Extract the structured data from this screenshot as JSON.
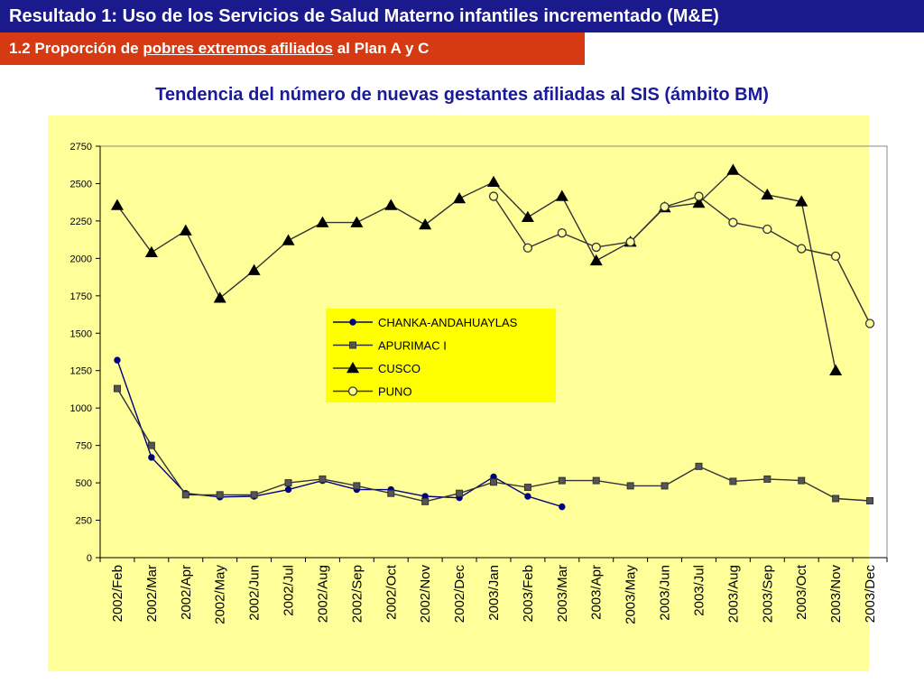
{
  "header": {
    "title": "Resultado 1: Uso de los Servicios de Salud Materno infantiles incrementado (M&E)",
    "subtitle_prefix": "1.2 Proporción de ",
    "subtitle_underlined": "pobres extremos afiliados",
    "subtitle_suffix": " al Plan A y C"
  },
  "colors": {
    "title_bar": "#1a1a8c",
    "subtitle_bar": "#d63a12",
    "chart_title": "#1a1a9c",
    "plot_bg": "#ffff99",
    "legend_bg": "#ffff00",
    "chanka_line": "#000080",
    "other_lines": "#333333"
  },
  "chart_data": {
    "type": "line",
    "title": "Tendencia del número de nuevas gestantes afiliadas al SIS (ámbito BM)",
    "categories": [
      "2002/Feb",
      "2002/Mar",
      "2002/Apr",
      "2002/May",
      "2002/Jun",
      "2002/Jul",
      "2002/Aug",
      "2002/Sep",
      "2002/Oct",
      "2002/Nov",
      "2002/Dec",
      "2003/Jan",
      "2003/Feb",
      "2003/Mar",
      "2003/Apr",
      "2003/May",
      "2003/Jun",
      "2003/Jul",
      "2003/Aug",
      "2003/Sep",
      "2003/Oct",
      "2003/Nov",
      "2003/Dec"
    ],
    "ylim": [
      0,
      2750
    ],
    "yticks": [
      0,
      250,
      500,
      750,
      1000,
      1250,
      1500,
      1750,
      2000,
      2250,
      2500,
      2750
    ],
    "ytick_labels": [
      "0",
      "250",
      "500",
      "750",
      "1000",
      "1250",
      "1500",
      "1750",
      "2000",
      "2250",
      "2500",
      "2750"
    ],
    "grid": false,
    "legend_position": "center",
    "series": [
      {
        "name": "CHANKA-ANDAHUAYLAS",
        "marker": "dot",
        "values": [
          1320,
          670,
          430,
          405,
          410,
          455,
          515,
          455,
          455,
          410,
          400,
          540,
          410,
          340,
          null,
          null,
          null,
          null,
          null,
          null,
          null,
          null,
          null
        ]
      },
      {
        "name": "APURIMAC I",
        "marker": "square",
        "values": [
          1130,
          750,
          420,
          420,
          420,
          500,
          525,
          480,
          430,
          375,
          430,
          505,
          470,
          515,
          515,
          480,
          480,
          610,
          510,
          525,
          515,
          395,
          380
        ]
      },
      {
        "name": "CUSCO",
        "marker": "triangle",
        "values": [
          2355,
          2040,
          2185,
          1735,
          1920,
          2120,
          2240,
          2240,
          2355,
          2225,
          2400,
          2510,
          2275,
          2415,
          1985,
          2110,
          2340,
          2370,
          2590,
          2425,
          2380,
          1250,
          null
        ]
      },
      {
        "name": "PUNO",
        "marker": "circle",
        "values": [
          null,
          null,
          null,
          null,
          null,
          null,
          null,
          null,
          null,
          null,
          null,
          2415,
          2070,
          2170,
          2075,
          2110,
          2345,
          2415,
          2240,
          2195,
          2065,
          2015,
          1565
        ]
      }
    ]
  }
}
